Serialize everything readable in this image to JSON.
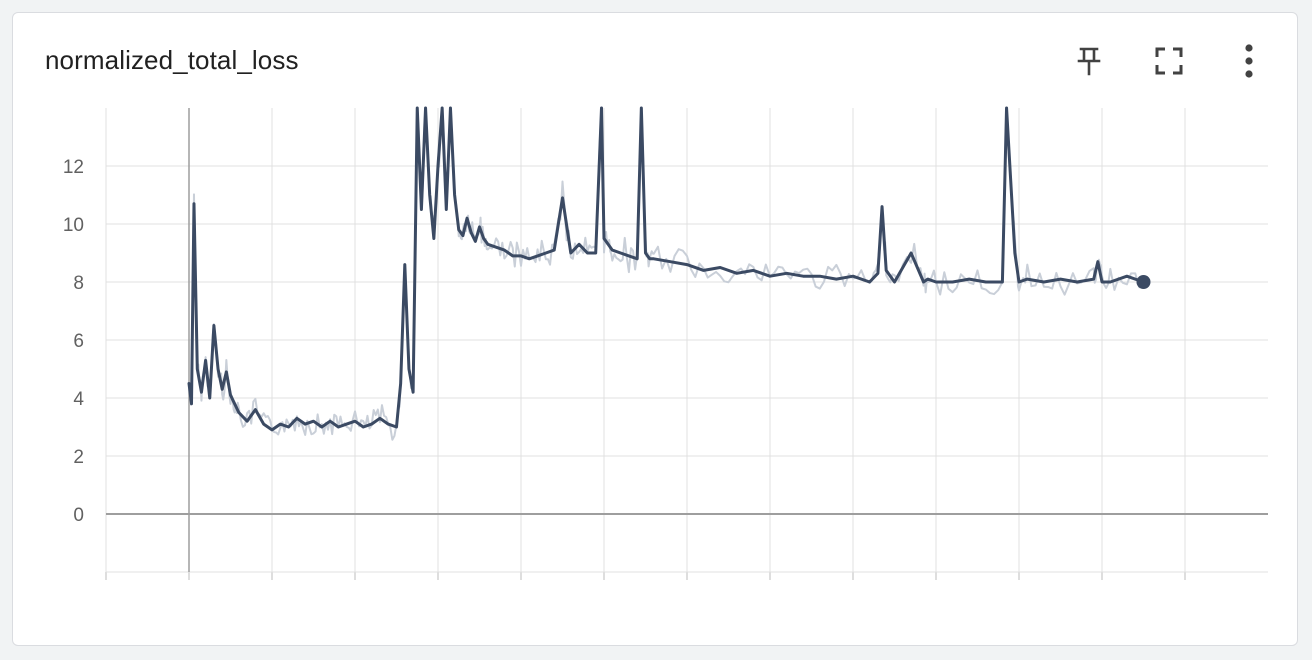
{
  "card": {
    "title": "normalized_total_loss",
    "actions": [
      {
        "name": "pin-button",
        "icon": "pin-icon"
      },
      {
        "name": "fullscreen-button",
        "icon": "fullscreen-icon"
      },
      {
        "name": "more-options-button",
        "icon": "more-vert-icon"
      }
    ]
  },
  "colors": {
    "smoothed": "#3b4a63",
    "raw": "#c9cfd8",
    "grid": "#e0e0e0",
    "zero_axis": "#9e9e9e"
  },
  "chart_data": {
    "type": "line",
    "title": "normalized_total_loss",
    "xlabel": "",
    "ylabel": "",
    "xlim": [
      0,
      14
    ],
    "ylim": [
      -2,
      14
    ],
    "y_ticks": [
      0,
      2,
      4,
      6,
      8,
      10,
      12
    ],
    "x_ticks": [
      0,
      1,
      2,
      3,
      4,
      5,
      6,
      7,
      8,
      9,
      10,
      11,
      12,
      13
    ],
    "x_tick_labels_visible": false,
    "grid": true,
    "legend": "none",
    "series": [
      {
        "values_role": "smoothed",
        "x": [
          1,
          1.03,
          1.06,
          1.1,
          1.15,
          1.2,
          1.25,
          1.3,
          1.35,
          1.4,
          1.45,
          1.5,
          1.55,
          1.6,
          1.7,
          1.8,
          1.9,
          2.0,
          2.1,
          2.2,
          2.3,
          2.4,
          2.5,
          2.6,
          2.7,
          2.8,
          2.9,
          3.0,
          3.1,
          3.2,
          3.3,
          3.4,
          3.5,
          3.55,
          3.6,
          3.65,
          3.7,
          3.75,
          3.8,
          3.85,
          3.9,
          3.95,
          4.0,
          4.05,
          4.1,
          4.15,
          4.2,
          4.25,
          4.3,
          4.35,
          4.4,
          4.45,
          4.5,
          4.55,
          4.6,
          4.7,
          4.8,
          4.9,
          5.0,
          5.1,
          5.2,
          5.3,
          5.4,
          5.5,
          5.6,
          5.7,
          5.8,
          5.9,
          5.97,
          6.0,
          6.05,
          6.1,
          6.2,
          6.3,
          6.4,
          6.45,
          6.5,
          6.55,
          6.6,
          6.8,
          7.0,
          7.2,
          7.4,
          7.6,
          7.8,
          8.0,
          8.2,
          8.4,
          8.6,
          8.8,
          9.0,
          9.2,
          9.3,
          9.35,
          9.4,
          9.5,
          9.7,
          9.85,
          9.9,
          10.0,
          10.2,
          10.4,
          10.6,
          10.8,
          10.85,
          10.9,
          10.95,
          11.0,
          11.1,
          11.3,
          11.5,
          11.7,
          11.9,
          11.95,
          12.0,
          12.1,
          12.3,
          12.5
        ],
        "y": [
          4.5,
          3.8,
          10.7,
          5.0,
          4.2,
          5.3,
          4.0,
          6.5,
          5.0,
          4.3,
          4.9,
          4.1,
          3.8,
          3.5,
          3.2,
          3.6,
          3.1,
          2.9,
          3.1,
          3.0,
          3.3,
          3.1,
          3.2,
          3.0,
          3.2,
          3.0,
          3.1,
          3.2,
          3.0,
          3.1,
          3.3,
          3.1,
          3.0,
          4.5,
          8.6,
          5.0,
          4.2,
          14.5,
          10.5,
          14.5,
          11.0,
          9.5,
          12.0,
          14.5,
          10.5,
          14.5,
          11.0,
          9.8,
          9.6,
          10.2,
          9.7,
          9.4,
          9.9,
          9.5,
          9.3,
          9.2,
          9.1,
          8.9,
          8.9,
          8.8,
          8.9,
          9.0,
          9.1,
          10.9,
          9.0,
          9.3,
          9.0,
          9.0,
          14.5,
          9.5,
          9.3,
          9.1,
          9.0,
          8.9,
          8.8,
          14.5,
          9.0,
          8.8,
          8.8,
          8.7,
          8.6,
          8.4,
          8.5,
          8.3,
          8.4,
          8.2,
          8.3,
          8.2,
          8.2,
          8.1,
          8.2,
          8.0,
          8.3,
          10.6,
          8.4,
          8.0,
          9.0,
          8.0,
          8.1,
          8.0,
          8.0,
          8.1,
          8.0,
          8.0,
          14.5,
          11.5,
          9.0,
          8.0,
          8.1,
          8.0,
          8.1,
          8.0,
          8.1,
          8.7,
          8.0,
          8.0,
          8.2,
          8.0
        ]
      }
    ]
  }
}
